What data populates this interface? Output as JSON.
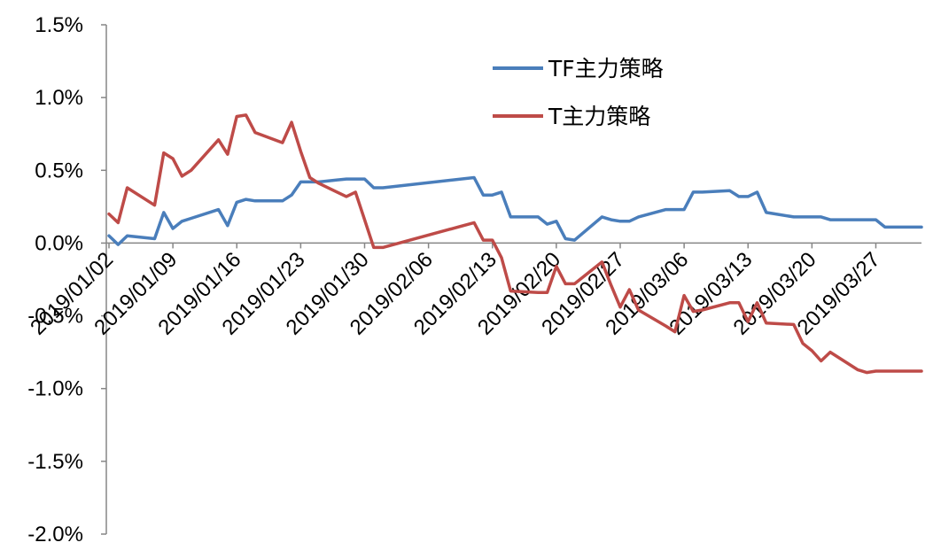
{
  "chart_data": {
    "type": "line",
    "title": "",
    "xlabel": "",
    "ylabel": "",
    "ylim": [
      -0.02,
      0.015
    ],
    "y_ticks": [
      0.015,
      0.01,
      0.005,
      0.0,
      -0.005,
      -0.01,
      -0.015,
      -0.02
    ],
    "y_tick_labels": [
      "1.5%",
      "1.0%",
      "0.5%",
      "0.0%",
      "-0.5%",
      "-1.0%",
      "-1.5%",
      "-2.0%"
    ],
    "xlim": [
      "2019-01-02",
      "2019-04-01"
    ],
    "x_ticks": [
      "2019/01/02",
      "2019/01/09",
      "2019/01/16",
      "2019/01/23",
      "2019/01/30",
      "2019/02/06",
      "2019/02/13",
      "2019/02/20",
      "2019/02/27",
      "2019/03/06",
      "2019/03/13",
      "2019/03/20",
      "2019/03/27"
    ],
    "grid": false,
    "legend_position": "top-right",
    "series": [
      {
        "name": "TF主力策略",
        "color": "#4a7ebb",
        "x": [
          "2019-01-02",
          "2019-01-03",
          "2019-01-04",
          "2019-01-07",
          "2019-01-08",
          "2019-01-09",
          "2019-01-10",
          "2019-01-11",
          "2019-01-14",
          "2019-01-15",
          "2019-01-16",
          "2019-01-17",
          "2019-01-18",
          "2019-01-21",
          "2019-01-22",
          "2019-01-23",
          "2019-01-24",
          "2019-01-25",
          "2019-01-28",
          "2019-01-29",
          "2019-01-30",
          "2019-01-31",
          "2019-02-01",
          "2019-02-11",
          "2019-02-12",
          "2019-02-13",
          "2019-02-14",
          "2019-02-15",
          "2019-02-18",
          "2019-02-19",
          "2019-02-20",
          "2019-02-21",
          "2019-02-22",
          "2019-02-25",
          "2019-02-26",
          "2019-02-27",
          "2019-02-28",
          "2019-03-01",
          "2019-03-04",
          "2019-03-05",
          "2019-03-06",
          "2019-03-07",
          "2019-03-08",
          "2019-03-11",
          "2019-03-12",
          "2019-03-13",
          "2019-03-14",
          "2019-03-15",
          "2019-03-18",
          "2019-03-19",
          "2019-03-20",
          "2019-03-21",
          "2019-03-22",
          "2019-03-25",
          "2019-03-26",
          "2019-03-27",
          "2019-03-28",
          "2019-03-29",
          "2019-04-01"
        ],
        "values": [
          0.0005,
          -0.0001,
          0.0005,
          0.0003,
          0.0021,
          0.001,
          0.0015,
          0.0017,
          0.0023,
          0.0012,
          0.0028,
          0.003,
          0.0029,
          0.0029,
          0.0033,
          0.0042,
          0.0042,
          0.0042,
          0.0044,
          0.0044,
          0.0044,
          0.0038,
          0.0038,
          0.0045,
          0.0033,
          0.0033,
          0.0035,
          0.0018,
          0.0018,
          0.0013,
          0.0015,
          0.0003,
          0.0002,
          0.0018,
          0.0016,
          0.0015,
          0.0015,
          0.0018,
          0.0023,
          0.0023,
          0.0023,
          0.0035,
          0.0035,
          0.0036,
          0.0032,
          0.0032,
          0.0035,
          0.0021,
          0.0018,
          0.0018,
          0.0018,
          0.0018,
          0.0016,
          0.0016,
          0.0016,
          0.0016,
          0.0011,
          0.0011,
          0.0011
        ]
      },
      {
        "name": "T主力策略",
        "color": "#be4b48",
        "x": [
          "2019-01-02",
          "2019-01-03",
          "2019-01-04",
          "2019-01-07",
          "2019-01-08",
          "2019-01-09",
          "2019-01-10",
          "2019-01-11",
          "2019-01-14",
          "2019-01-15",
          "2019-01-16",
          "2019-01-17",
          "2019-01-18",
          "2019-01-21",
          "2019-01-22",
          "2019-01-23",
          "2019-01-24",
          "2019-01-25",
          "2019-01-28",
          "2019-01-29",
          "2019-01-30",
          "2019-01-31",
          "2019-02-01",
          "2019-02-11",
          "2019-02-12",
          "2019-02-13",
          "2019-02-14",
          "2019-02-15",
          "2019-02-18",
          "2019-02-19",
          "2019-02-20",
          "2019-02-21",
          "2019-02-22",
          "2019-02-25",
          "2019-02-26",
          "2019-02-27",
          "2019-02-28",
          "2019-03-01",
          "2019-03-04",
          "2019-03-05",
          "2019-03-06",
          "2019-03-07",
          "2019-03-08",
          "2019-03-11",
          "2019-03-12",
          "2019-03-13",
          "2019-03-14",
          "2019-03-15",
          "2019-03-18",
          "2019-03-19",
          "2019-03-20",
          "2019-03-21",
          "2019-03-22",
          "2019-03-25",
          "2019-03-26",
          "2019-03-27",
          "2019-03-28",
          "2019-03-29",
          "2019-04-01"
        ],
        "values": [
          0.002,
          0.0014,
          0.0038,
          0.0026,
          0.0062,
          0.0058,
          0.0046,
          0.005,
          0.0071,
          0.0061,
          0.0087,
          0.0088,
          0.0076,
          0.0069,
          0.0083,
          0.0063,
          0.0045,
          0.0041,
          0.0032,
          0.0035,
          0.0016,
          -0.0003,
          -0.0003,
          0.0014,
          0.0002,
          0.0002,
          -0.001,
          -0.0033,
          -0.0034,
          -0.0034,
          -0.0016,
          -0.0028,
          -0.0028,
          -0.0013,
          -0.0029,
          -0.0044,
          -0.0032,
          -0.0046,
          -0.0057,
          -0.0061,
          -0.0036,
          -0.0047,
          -0.0046,
          -0.0041,
          -0.0041,
          -0.0054,
          -0.0041,
          -0.0055,
          -0.0056,
          -0.0069,
          -0.0074,
          -0.0081,
          -0.0075,
          -0.0087,
          -0.0089,
          -0.0088,
          -0.0088,
          -0.0088,
          -0.0088
        ]
      }
    ]
  }
}
